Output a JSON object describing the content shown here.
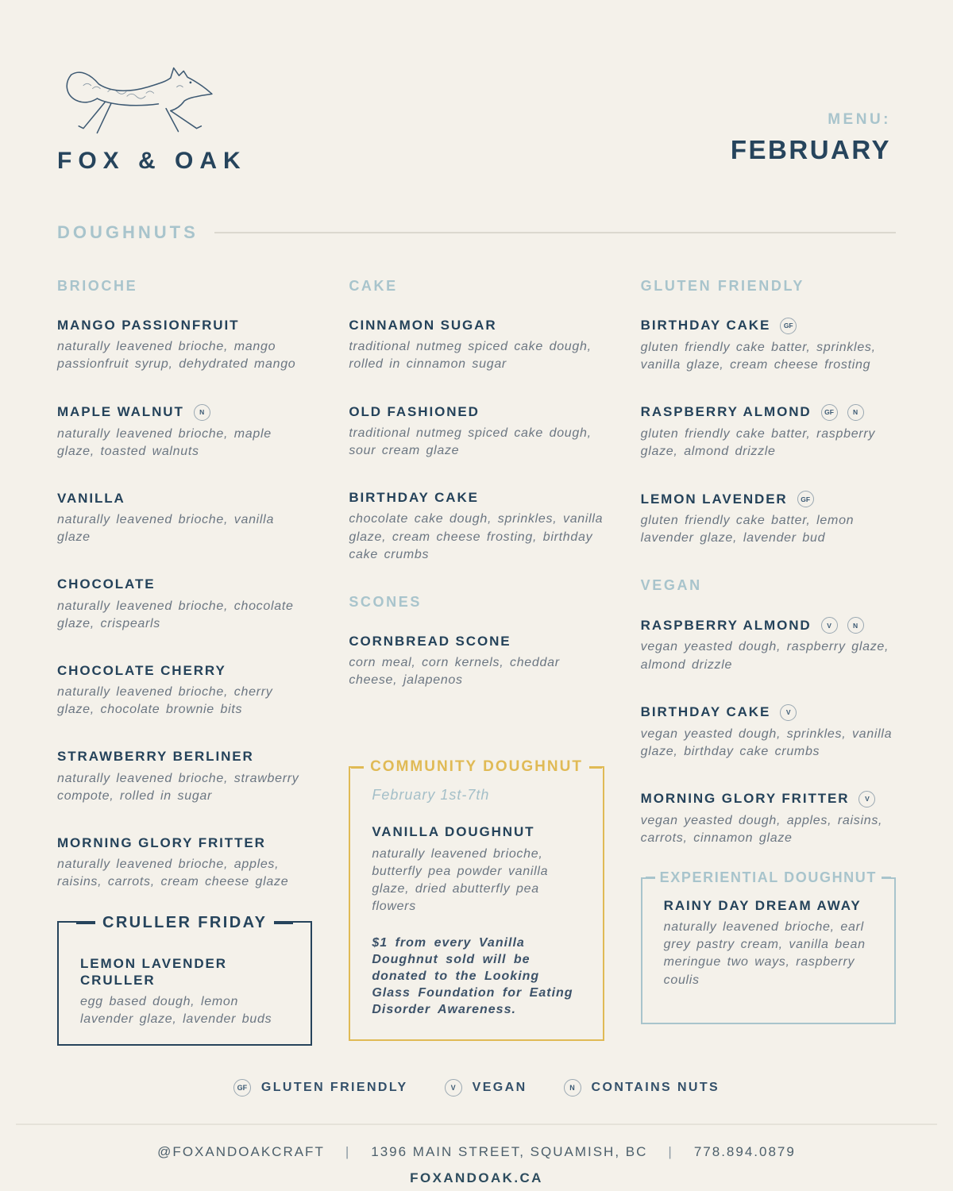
{
  "colors": {
    "background": "#f4f1ea",
    "navy": "#26445c",
    "light_blue": "#a8c4cc",
    "gold": "#e0ba55",
    "description_gray": "#6b7682"
  },
  "header": {
    "brand": "FOX & OAK",
    "logo_icon": "running-fox-sketch",
    "menu_label": "MENU:",
    "menu_month": "FEBRUARY"
  },
  "section_title": "DOUGHNUTS",
  "columns": [
    [
      {
        "type": "section",
        "label": "BRIOCHE"
      },
      {
        "type": "item",
        "name": "MANGO PASSIONFRUIT",
        "badges": [],
        "desc": "naturally leavened brioche, mango passionfruit syrup, dehydrated mango"
      },
      {
        "type": "item",
        "name": "MAPLE WALNUT",
        "badges": [
          "N"
        ],
        "desc": "naturally leavened brioche, maple glaze, toasted walnuts"
      },
      {
        "type": "item",
        "name": "VANILLA",
        "badges": [],
        "desc": "naturally leavened brioche, vanilla glaze"
      },
      {
        "type": "item",
        "name": "CHOCOLATE",
        "badges": [],
        "desc": "naturally leavened brioche, chocolate glaze, crispearls"
      },
      {
        "type": "item",
        "name": "CHOCOLATE CHERRY",
        "badges": [],
        "desc": "naturally leavened brioche, cherry glaze, chocolate brownie bits"
      },
      {
        "type": "item",
        "name": "STRAWBERRY BERLINER",
        "badges": [],
        "desc": "naturally leavened brioche, strawberry compote, rolled in sugar"
      },
      {
        "type": "item",
        "name": "MORNING GLORY FRITTER",
        "badges": [],
        "desc": "naturally leavened brioche, apples, raisins, carrots, cream cheese glaze"
      },
      {
        "type": "box",
        "variant": "navy",
        "title": "CRULLER FRIDAY",
        "items": [
          {
            "name": "LEMON LAVENDER CRULLER",
            "badges": [],
            "desc": "egg based dough, lemon lavender glaze, lavender buds"
          }
        ]
      }
    ],
    [
      {
        "type": "section",
        "label": "CAKE"
      },
      {
        "type": "item",
        "name": "CINNAMON SUGAR",
        "badges": [],
        "desc": "traditional nutmeg spiced cake dough, rolled in cinnamon sugar"
      },
      {
        "type": "item",
        "name": "OLD FASHIONED",
        "badges": [],
        "desc": "traditional nutmeg spiced cake dough, sour cream glaze"
      },
      {
        "type": "item",
        "name": "BIRTHDAY CAKE",
        "badges": [],
        "desc": "chocolate cake dough, sprinkles, vanilla glaze, cream cheese frosting, birthday cake crumbs"
      },
      {
        "type": "section",
        "label": "SCONES"
      },
      {
        "type": "item",
        "name": "CORNBREAD SCONE",
        "badges": [],
        "desc": "corn meal, corn kernels, cheddar cheese, jalapenos"
      },
      {
        "type": "box",
        "variant": "gold",
        "title": "COMMUNITY DOUGHNUT",
        "subtitle": "February 1st-7th",
        "items": [
          {
            "name": "VANILLA DOUGHNUT",
            "badges": [],
            "desc": "naturally leavened brioche, butterfly pea powder vanilla glaze, dried abutterfly pea flowers"
          }
        ],
        "note": "$1 from every Vanilla Doughnut sold will be donated to the Looking Glass Foundation for Eating Disorder Awareness."
      }
    ],
    [
      {
        "type": "section",
        "label": "GLUTEN FRIENDLY"
      },
      {
        "type": "item",
        "name": "BIRTHDAY CAKE",
        "badges": [
          "GF"
        ],
        "desc": "gluten friendly cake batter, sprinkles, vanilla glaze, cream cheese frosting"
      },
      {
        "type": "item",
        "name": "RASPBERRY ALMOND",
        "badges": [
          "GF",
          "N"
        ],
        "desc": "gluten friendly cake batter, raspberry glaze, almond drizzle"
      },
      {
        "type": "item",
        "name": "LEMON LAVENDER",
        "badges": [
          "GF"
        ],
        "desc": "gluten friendly cake batter, lemon lavender glaze, lavender bud"
      },
      {
        "type": "section",
        "label": "VEGAN"
      },
      {
        "type": "item",
        "name": "RASPBERRY ALMOND",
        "badges": [
          "V",
          "N"
        ],
        "desc": "vegan yeasted dough, raspberry glaze, almond drizzle"
      },
      {
        "type": "item",
        "name": "BIRTHDAY CAKE",
        "badges": [
          "V"
        ],
        "desc": "vegan yeasted dough, sprinkles, vanilla glaze, birthday cake crumbs"
      },
      {
        "type": "item",
        "name": "MORNING GLORY FRITTER",
        "badges": [
          "V"
        ],
        "desc": "vegan yeasted dough, apples, raisins, carrots, cinnamon glaze"
      },
      {
        "type": "box",
        "variant": "blue",
        "title": "EXPERIENTIAL DOUGHNUT",
        "items": [
          {
            "name": "RAINY DAY DREAM AWAY",
            "badges": [],
            "desc": "naturally leavened brioche, earl grey pastry cream, vanilla bean meringue two ways, raspberry coulis"
          }
        ]
      }
    ]
  ],
  "legend": [
    {
      "badge": "GF",
      "label": "GLUTEN FRIENDLY"
    },
    {
      "badge": "V",
      "label": "VEGAN"
    },
    {
      "badge": "N",
      "label": "CONTAINS NUTS"
    }
  ],
  "footer": {
    "handle": "@FOXANDOAKCRAFT",
    "separator": "|",
    "address": "1396 MAIN STREET, SQUAMISH, BC",
    "phone": "778.894.0879",
    "website": "FOXANDOAK.CA"
  }
}
